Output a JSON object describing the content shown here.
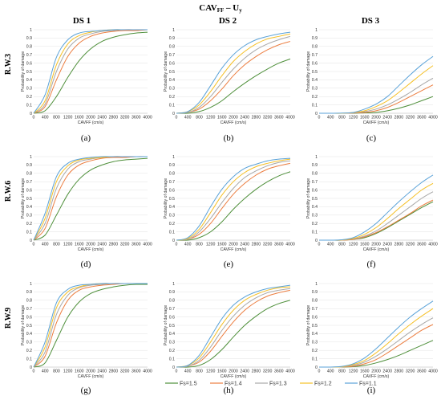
{
  "figure": {
    "title_main": "CAV",
    "title_sub": "FF",
    "title_rest": " – U",
    "title_sub2": "y",
    "column_titles": [
      "DS 1",
      "DS 2",
      "DS 3"
    ],
    "row_titles": [
      "R.W.3",
      "R.W.6",
      "R.W.9"
    ]
  },
  "series_colors": [
    "#4e8f3a",
    "#ec7d3f",
    "#a8a8a8",
    "#f5c026",
    "#5aa2d8"
  ],
  "legend": [
    "Fs=1.5",
    "Fs=1.4",
    "Fs=1.3",
    "Fs=1.2",
    "Fs=1.1"
  ],
  "chart_data": [
    {
      "panel": "(a)",
      "row": 0,
      "col": 0,
      "type": "line",
      "xlabel": "CAVFF (cm/s)",
      "ylabel": "Probability of damage",
      "xlim": [
        0,
        4000
      ],
      "ylim": [
        0,
        1
      ],
      "xticks": [
        0,
        400,
        800,
        1200,
        1600,
        2000,
        2400,
        2800,
        3200,
        3600,
        4000
      ],
      "yticks": [
        0,
        0.1,
        0.2,
        0.3,
        0.4,
        0.5,
        0.6,
        0.7,
        0.8,
        0.9,
        1
      ],
      "x": [
        0,
        400,
        800,
        1200,
        1600,
        2000,
        2400,
        2800,
        3200,
        3600,
        4000
      ],
      "series": [
        {
          "name": "Fs=1.5",
          "values": [
            0,
            0.03,
            0.2,
            0.43,
            0.63,
            0.77,
            0.86,
            0.91,
            0.94,
            0.96,
            0.97
          ]
        },
        {
          "name": "Fs=1.4",
          "values": [
            0,
            0.08,
            0.4,
            0.68,
            0.84,
            0.92,
            0.96,
            0.98,
            0.99,
            0.99,
            1
          ]
        },
        {
          "name": "Fs=1.3",
          "values": [
            0,
            0.11,
            0.5,
            0.77,
            0.9,
            0.95,
            0.98,
            0.99,
            1,
            1,
            1
          ]
        },
        {
          "name": "Fs=1.2",
          "values": [
            0,
            0.15,
            0.58,
            0.83,
            0.93,
            0.97,
            0.99,
            1,
            1,
            1,
            1
          ]
        },
        {
          "name": "Fs=1.1",
          "values": [
            0,
            0.22,
            0.67,
            0.88,
            0.96,
            0.98,
            0.99,
            1,
            1,
            1,
            1
          ]
        }
      ]
    },
    {
      "panel": "(b)",
      "row": 0,
      "col": 1,
      "type": "line",
      "xlabel": "CAVFF (cm/s)",
      "ylabel": "Probability of damage",
      "xlim": [
        0,
        4000
      ],
      "ylim": [
        0,
        1
      ],
      "xticks": [
        0,
        400,
        800,
        1200,
        1600,
        2000,
        2400,
        2800,
        3200,
        3600,
        4000
      ],
      "yticks": [
        0,
        0.1,
        0.2,
        0.3,
        0.4,
        0.5,
        0.6,
        0.7,
        0.8,
        0.9,
        1
      ],
      "x": [
        0,
        400,
        800,
        1200,
        1600,
        2000,
        2400,
        2800,
        3200,
        3600,
        4000
      ],
      "series": [
        {
          "name": "Fs=1.5",
          "values": [
            0,
            0,
            0.02,
            0.07,
            0.15,
            0.26,
            0.36,
            0.45,
            0.53,
            0.6,
            0.65
          ]
        },
        {
          "name": "Fs=1.4",
          "values": [
            0,
            0.01,
            0.05,
            0.15,
            0.29,
            0.45,
            0.58,
            0.68,
            0.76,
            0.82,
            0.86
          ]
        },
        {
          "name": "Fs=1.3",
          "values": [
            0,
            0.01,
            0.07,
            0.2,
            0.37,
            0.53,
            0.66,
            0.76,
            0.83,
            0.88,
            0.92
          ]
        },
        {
          "name": "Fs=1.2",
          "values": [
            0,
            0.02,
            0.1,
            0.26,
            0.45,
            0.62,
            0.74,
            0.83,
            0.89,
            0.92,
            0.95
          ]
        },
        {
          "name": "Fs=1.1",
          "values": [
            0,
            0.02,
            0.13,
            0.33,
            0.54,
            0.7,
            0.81,
            0.88,
            0.92,
            0.95,
            0.97
          ]
        }
      ]
    },
    {
      "panel": "(c)",
      "row": 0,
      "col": 2,
      "type": "line",
      "xlabel": "CAVFF (cm/s)",
      "ylabel": "Probability of damage",
      "xlim": [
        0,
        4000
      ],
      "ylim": [
        0,
        1
      ],
      "xticks": [
        0,
        400,
        800,
        1200,
        1600,
        2000,
        2400,
        2800,
        3200,
        3600,
        4000
      ],
      "yticks": [
        0,
        0.1,
        0.2,
        0.3,
        0.4,
        0.5,
        0.6,
        0.7,
        0.8,
        0.9,
        1
      ],
      "x": [
        0,
        400,
        800,
        1200,
        1600,
        2000,
        2400,
        2800,
        3200,
        3600,
        4000
      ],
      "series": [
        {
          "name": "Fs=1.5",
          "values": [
            0,
            0,
            0,
            0,
            0.005,
            0.01,
            0.03,
            0.06,
            0.1,
            0.15,
            0.2
          ]
        },
        {
          "name": "Fs=1.4",
          "values": [
            0,
            0,
            0,
            0.003,
            0.01,
            0.03,
            0.07,
            0.13,
            0.2,
            0.27,
            0.34
          ]
        },
        {
          "name": "Fs=1.3",
          "values": [
            0,
            0,
            0,
            0.005,
            0.02,
            0.05,
            0.1,
            0.17,
            0.25,
            0.34,
            0.42
          ]
        },
        {
          "name": "Fs=1.2",
          "values": [
            0,
            0,
            0,
            0.01,
            0.03,
            0.08,
            0.15,
            0.25,
            0.36,
            0.47,
            0.57
          ]
        },
        {
          "name": "Fs=1.1",
          "values": [
            0,
            0,
            0.002,
            0.01,
            0.05,
            0.11,
            0.2,
            0.33,
            0.46,
            0.58,
            0.68
          ]
        }
      ]
    },
    {
      "panel": "(d)",
      "row": 1,
      "col": 0,
      "type": "line",
      "xlabel": "CAVFF (cm/s)",
      "ylabel": "Probability of damage",
      "xlim": [
        0,
        4000
      ],
      "ylim": [
        0,
        1
      ],
      "xticks": [
        0,
        400,
        800,
        1200,
        1600,
        2000,
        2400,
        2800,
        3200,
        3600,
        4000
      ],
      "yticks": [
        0,
        0.1,
        0.2,
        0.3,
        0.4,
        0.5,
        0.6,
        0.7,
        0.8,
        0.9,
        1
      ],
      "x": [
        0,
        400,
        800,
        1200,
        1600,
        2000,
        2400,
        2800,
        3200,
        3600,
        4000
      ],
      "series": [
        {
          "name": "Fs=1.5",
          "values": [
            0,
            0.06,
            0.3,
            0.55,
            0.73,
            0.84,
            0.9,
            0.94,
            0.96,
            0.97,
            0.98
          ]
        },
        {
          "name": "Fs=1.4",
          "values": [
            0,
            0.14,
            0.52,
            0.78,
            0.9,
            0.95,
            0.98,
            0.99,
            0.99,
            1,
            1
          ]
        },
        {
          "name": "Fs=1.3",
          "values": [
            0,
            0.2,
            0.62,
            0.85,
            0.94,
            0.97,
            0.99,
            1,
            1,
            1,
            1
          ]
        },
        {
          "name": "Fs=1.2",
          "values": [
            0,
            0.26,
            0.7,
            0.89,
            0.96,
            0.98,
            0.99,
            1,
            1,
            1,
            1
          ]
        },
        {
          "name": "Fs=1.1",
          "values": [
            0,
            0.32,
            0.76,
            0.92,
            0.97,
            0.99,
            1,
            1,
            1,
            1,
            1
          ]
        }
      ]
    },
    {
      "panel": "(e)",
      "row": 1,
      "col": 1,
      "type": "line",
      "xlabel": "CAVFF (cm/s)",
      "ylabel": "Probability of damage",
      "xlim": [
        0,
        4000
      ],
      "ylim": [
        0,
        1
      ],
      "xticks": [
        0,
        400,
        800,
        1200,
        1600,
        2000,
        2400,
        2800,
        3200,
        3600,
        4000
      ],
      "yticks": [
        0,
        0.1,
        0.2,
        0.3,
        0.4,
        0.5,
        0.6,
        0.7,
        0.8,
        0.9,
        1
      ],
      "x": [
        0,
        400,
        800,
        1200,
        1600,
        2000,
        2400,
        2800,
        3200,
        3600,
        4000
      ],
      "series": [
        {
          "name": "Fs=1.5",
          "values": [
            0,
            0,
            0.03,
            0.1,
            0.22,
            0.37,
            0.5,
            0.61,
            0.7,
            0.77,
            0.82
          ]
        },
        {
          "name": "Fs=1.4",
          "values": [
            0,
            0.01,
            0.07,
            0.2,
            0.38,
            0.55,
            0.68,
            0.78,
            0.85,
            0.89,
            0.92
          ]
        },
        {
          "name": "Fs=1.3",
          "values": [
            0,
            0.01,
            0.1,
            0.26,
            0.45,
            0.62,
            0.75,
            0.83,
            0.89,
            0.93,
            0.95
          ]
        },
        {
          "name": "Fs=1.2",
          "values": [
            0,
            0.02,
            0.13,
            0.33,
            0.54,
            0.7,
            0.81,
            0.88,
            0.92,
            0.95,
            0.97
          ]
        },
        {
          "name": "Fs=1.1",
          "values": [
            0,
            0.03,
            0.17,
            0.4,
            0.61,
            0.76,
            0.86,
            0.91,
            0.95,
            0.97,
            0.98
          ]
        }
      ]
    },
    {
      "panel": "(f)",
      "row": 1,
      "col": 2,
      "type": "line",
      "xlabel": "CAVFF (cm/s)",
      "ylabel": "Probability of damage",
      "xlim": [
        0,
        4000
      ],
      "ylim": [
        0,
        1
      ],
      "xticks": [
        0,
        400,
        800,
        1200,
        1600,
        2000,
        2400,
        2800,
        3200,
        3600,
        4000
      ],
      "yticks": [
        0,
        0.1,
        0.2,
        0.3,
        0.4,
        0.5,
        0.6,
        0.7,
        0.8,
        0.9,
        1
      ],
      "x": [
        0,
        400,
        800,
        1200,
        1600,
        2000,
        2400,
        2800,
        3200,
        3600,
        4000
      ],
      "series": [
        {
          "name": "Fs=1.5",
          "values": [
            0,
            0,
            0,
            0.01,
            0.03,
            0.08,
            0.15,
            0.23,
            0.31,
            0.39,
            0.46
          ]
        },
        {
          "name": "Fs=1.4",
          "values": [
            0,
            0,
            0,
            0.01,
            0.04,
            0.09,
            0.16,
            0.24,
            0.32,
            0.41,
            0.48
          ]
        },
        {
          "name": "Fs=1.3",
          "values": [
            0,
            0,
            0.002,
            0.015,
            0.05,
            0.11,
            0.2,
            0.3,
            0.4,
            0.5,
            0.58
          ]
        },
        {
          "name": "Fs=1.2",
          "values": [
            0,
            0,
            0.003,
            0.02,
            0.07,
            0.15,
            0.26,
            0.38,
            0.49,
            0.6,
            0.68
          ]
        },
        {
          "name": "Fs=1.1",
          "values": [
            0,
            0,
            0.005,
            0.03,
            0.1,
            0.2,
            0.33,
            0.46,
            0.58,
            0.69,
            0.78
          ]
        }
      ]
    },
    {
      "panel": "(g)",
      "row": 2,
      "col": 0,
      "type": "line",
      "xlabel": "CAVFF (cm/s)",
      "ylabel": "Probability of damage",
      "xlim": [
        0,
        4000
      ],
      "ylim": [
        0,
        1
      ],
      "xticks": [
        0,
        400,
        800,
        1200,
        1600,
        2000,
        2400,
        2800,
        3200,
        3600,
        4000
      ],
      "yticks": [
        0,
        0.1,
        0.2,
        0.3,
        0.4,
        0.5,
        0.6,
        0.7,
        0.8,
        0.9,
        1
      ],
      "x": [
        0,
        400,
        800,
        1200,
        1600,
        2000,
        2400,
        2800,
        3200,
        3600,
        4000
      ],
      "series": [
        {
          "name": "Fs=1.5",
          "values": [
            0,
            0.05,
            0.32,
            0.6,
            0.78,
            0.88,
            0.93,
            0.96,
            0.98,
            0.99,
            0.99
          ]
        },
        {
          "name": "Fs=1.4",
          "values": [
            0,
            0.13,
            0.53,
            0.8,
            0.92,
            0.96,
            0.98,
            0.99,
            1,
            1,
            1
          ]
        },
        {
          "name": "Fs=1.3",
          "values": [
            0,
            0.18,
            0.63,
            0.86,
            0.95,
            0.98,
            0.99,
            1,
            1,
            1,
            1
          ]
        },
        {
          "name": "Fs=1.2",
          "values": [
            0,
            0.24,
            0.71,
            0.9,
            0.96,
            0.99,
            1,
            1,
            1,
            1,
            1
          ]
        },
        {
          "name": "Fs=1.1",
          "values": [
            0,
            0.3,
            0.77,
            0.93,
            0.98,
            0.99,
            1,
            1,
            1,
            1,
            1
          ]
        }
      ]
    },
    {
      "panel": "(h)",
      "row": 2,
      "col": 1,
      "type": "line",
      "xlabel": "CAVFF (cm/s)",
      "ylabel": "Probability of damage",
      "xlim": [
        0,
        4000
      ],
      "ylim": [
        0,
        1
      ],
      "xticks": [
        0,
        400,
        800,
        1200,
        1600,
        2000,
        2400,
        2800,
        3200,
        3600,
        4000
      ],
      "yticks": [
        0,
        0.1,
        0.2,
        0.3,
        0.4,
        0.5,
        0.6,
        0.7,
        0.8,
        0.9,
        1
      ],
      "x": [
        0,
        400,
        800,
        1200,
        1600,
        2000,
        2400,
        2800,
        3200,
        3600,
        4000
      ],
      "series": [
        {
          "name": "Fs=1.5",
          "values": [
            0,
            0,
            0.02,
            0.09,
            0.21,
            0.36,
            0.5,
            0.61,
            0.7,
            0.76,
            0.8
          ]
        },
        {
          "name": "Fs=1.4",
          "values": [
            0,
            0.01,
            0.06,
            0.19,
            0.37,
            0.54,
            0.68,
            0.78,
            0.85,
            0.89,
            0.92
          ]
        },
        {
          "name": "Fs=1.3",
          "values": [
            0,
            0.01,
            0.08,
            0.24,
            0.44,
            0.61,
            0.74,
            0.83,
            0.89,
            0.92,
            0.94
          ]
        },
        {
          "name": "Fs=1.2",
          "values": [
            0,
            0.02,
            0.11,
            0.3,
            0.51,
            0.68,
            0.8,
            0.87,
            0.92,
            0.95,
            0.96
          ]
        },
        {
          "name": "Fs=1.1",
          "values": [
            0,
            0.02,
            0.14,
            0.36,
            0.58,
            0.74,
            0.84,
            0.9,
            0.94,
            0.96,
            0.98
          ]
        }
      ]
    },
    {
      "panel": "(i)",
      "row": 2,
      "col": 2,
      "type": "line",
      "xlabel": "CAVFF (cm/s)",
      "ylabel": "Probability of damage",
      "xlim": [
        0,
        4000
      ],
      "ylim": [
        0,
        1
      ],
      "xticks": [
        0,
        400,
        800,
        1200,
        1600,
        2000,
        2400,
        2800,
        3200,
        3600,
        4000
      ],
      "yticks": [
        0,
        0.1,
        0.2,
        0.3,
        0.4,
        0.5,
        0.6,
        0.7,
        0.8,
        0.9,
        1
      ],
      "x": [
        0,
        400,
        800,
        1200,
        1600,
        2000,
        2400,
        2800,
        3200,
        3600,
        4000
      ],
      "series": [
        {
          "name": "Fs=1.5",
          "values": [
            0,
            0,
            0,
            0.005,
            0.02,
            0.05,
            0.09,
            0.14,
            0.2,
            0.26,
            0.32
          ]
        },
        {
          "name": "Fs=1.4",
          "values": [
            0,
            0,
            0.002,
            0.01,
            0.04,
            0.09,
            0.17,
            0.26,
            0.35,
            0.44,
            0.51
          ]
        },
        {
          "name": "Fs=1.3",
          "values": [
            0,
            0,
            0.003,
            0.02,
            0.06,
            0.13,
            0.22,
            0.32,
            0.42,
            0.51,
            0.59
          ]
        },
        {
          "name": "Fs=1.2",
          "values": [
            0,
            0,
            0.005,
            0.03,
            0.08,
            0.17,
            0.28,
            0.4,
            0.51,
            0.61,
            0.7
          ]
        },
        {
          "name": "Fs=1.1",
          "values": [
            0,
            0,
            0.008,
            0.04,
            0.11,
            0.22,
            0.35,
            0.48,
            0.6,
            0.7,
            0.79
          ]
        }
      ]
    }
  ]
}
